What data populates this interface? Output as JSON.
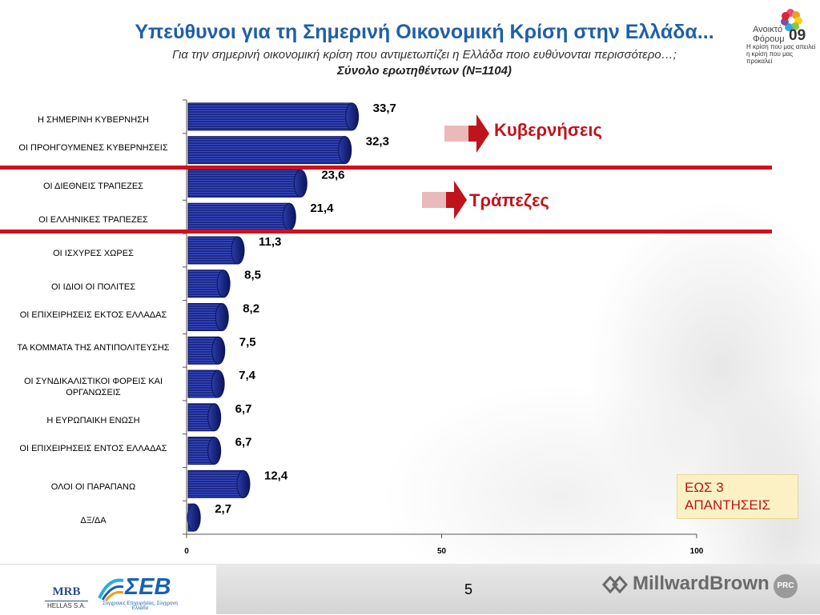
{
  "header": {
    "title": "Υπεύθυνοι για τη Σημερινή Οικονομική Κρίση στην Ελλάδα...",
    "subtitle": "Για την σημερινή οικονομική κρίση που αντιμετωπίζει η Ελλάδα ποιο ευθύνονται περισσότερο…;",
    "sample": "Σύνολο ερωτηθέντων (Ν=1104)"
  },
  "forum_logo": {
    "name": "Ανοικτό Φόρουμ",
    "year": "09",
    "caption": "Η κρίση που μας απειλεί η κρίση που μας προκαλεί"
  },
  "chart_data": {
    "type": "bar",
    "orientation": "horizontal",
    "categories": [
      "Η ΣΗΜΕΡΙΝΗ ΚΥΒΕΡΝΗΣΗ",
      "ΟΙ ΠΡΟΗΓΟΥΜΕΝΕΣ ΚΥΒΕΡΝΗΣΕΙΣ",
      "ΟΙ ΔΙΕΘΝΕΙΣ ΤΡΑΠΕΖΕΣ",
      "ΟΙ ΕΛΛΗΝΙΚΕΣ ΤΡΑΠΕΖΕΣ",
      "ΟΙ ΙΣΧΥΡΕΣ ΧΩΡΕΣ",
      "ΟΙ ΙΔΙΟΙ ΟΙ ΠΟΛΙΤΕΣ",
      "ΟΙ ΕΠΙΧΕΙΡΗΣΕΙΣ ΕΚΤΟΣ ΕΛΛΑΔΑΣ",
      "ΤΑ ΚΟΜΜΑΤΑ ΤΗΣ ΑΝΤΙΠΟΛΙΤΕΥΣΗΣ",
      "ΟΙ ΣΥΝΔΙΚΑΛΙΣΤΙΚΟΙ ΦΟΡΕΙΣ ΚΑΙ ΟΡΓΑΝΩΣΕΙΣ",
      "Η ΕΥΡΩΠΑΙΚΗ ΕΝΩΣΗ",
      "ΟΙ ΕΠΙΧΕΙΡΗΣΕΙΣ ΕΝΤΟΣ ΕΛΛΑΔΑΣ",
      "ΟΛΟΙ ΟΙ ΠΑΡΑΠΑΝΩ",
      "ΔΞ/ΔΑ"
    ],
    "values": [
      33.7,
      32.3,
      23.6,
      21.4,
      11.3,
      8.5,
      8.2,
      7.5,
      7.4,
      6.7,
      6.7,
      12.4,
      2.7
    ],
    "value_labels": [
      "33,7",
      "32,3",
      "23,6",
      "21,4",
      "11,3",
      "8,5",
      "8,2",
      "7,5",
      "7,4",
      "6,7",
      "6,7",
      "12,4",
      "2,7"
    ],
    "xlim": [
      0,
      100
    ],
    "x_ticks": [
      "0",
      "50",
      "100"
    ],
    "bar_color": "#1c2a8c",
    "grid": false
  },
  "callouts": {
    "governments": "Κυβερνήσεις",
    "banks": "Τράπεζες",
    "arrow_color": "#c0141c",
    "line_color": "#d0101c"
  },
  "note": "ΕΩΣ 3 ΑΠΑΝΤΗΣΕΙΣ",
  "footer": {
    "page_number": "5",
    "mrb": "MRB",
    "mrb_sub": "HELLAS S.A.",
    "sev": "ΣΕΒ",
    "sev_sub": "Σύγχρονες Επιχειρήσεις, Σύγχρονη Ελλάδα",
    "millward_brown": "MillwardBrown",
    "prc": "PRC"
  }
}
